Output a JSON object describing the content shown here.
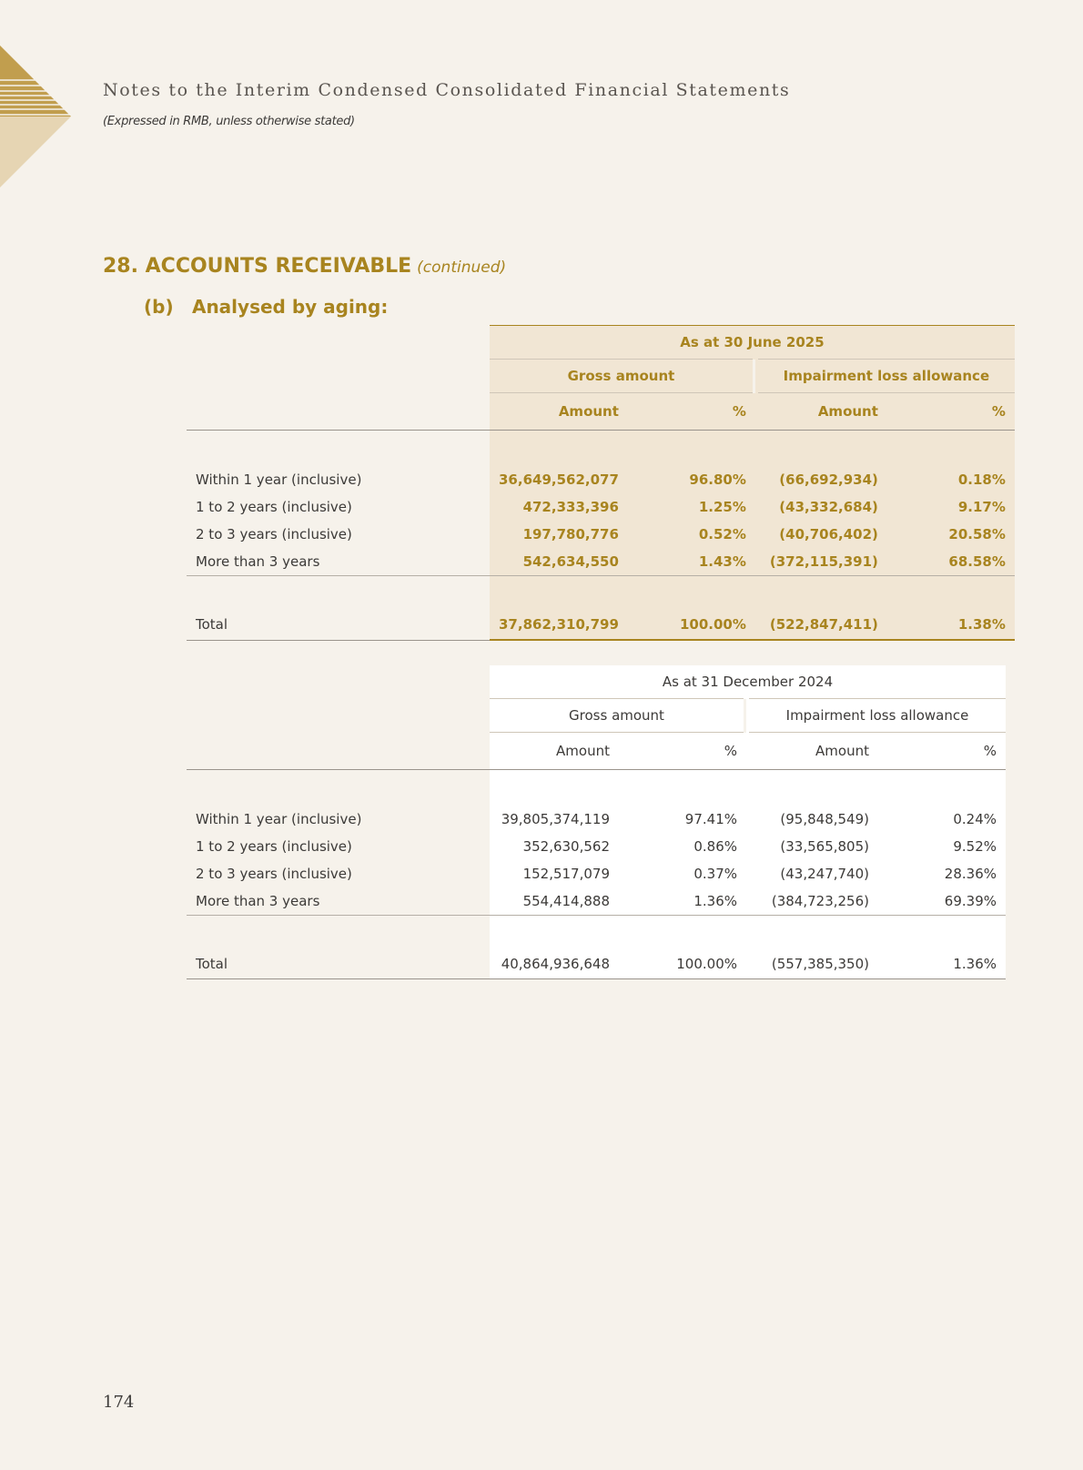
{
  "header": {
    "running_title": "Notes to the Interim Condensed Consolidated Financial Statements",
    "subtitle": "(Expressed in RMB, unless otherwise stated)"
  },
  "section": {
    "number": "28.",
    "title": "ACCOUNTS RECEIVABLE",
    "continued": "(continued)",
    "sub_label": "(b)",
    "sub_title": "Analysed by aging:"
  },
  "colors": {
    "accent": "#a8841f",
    "shade": "#f1e6d4",
    "background": "#f6f2eb"
  },
  "tables": [
    {
      "period": "As at 30 June 2025",
      "group1": "Gross amount",
      "group2": "Impairment loss allowance",
      "cols": [
        "Amount",
        "%",
        "Amount",
        "%"
      ],
      "rows": [
        {
          "label": "Within 1 year (inclusive)",
          "values": [
            "36,649,562,077",
            "96.80%",
            "(66,692,934)",
            "0.18%"
          ]
        },
        {
          "label": "1 to 2 years (inclusive)",
          "values": [
            "472,333,396",
            "1.25%",
            "(43,332,684)",
            "9.17%"
          ]
        },
        {
          "label": "2 to 3 years (inclusive)",
          "values": [
            "197,780,776",
            "0.52%",
            "(40,706,402)",
            "20.58%"
          ]
        },
        {
          "label": "More than 3 years",
          "values": [
            "542,634,550",
            "1.43%",
            "(372,115,391)",
            "68.58%"
          ]
        }
      ],
      "total": {
        "label": "Total",
        "values": [
          "37,862,310,799",
          "100.00%",
          "(522,847,411)",
          "1.38%"
        ]
      }
    },
    {
      "period": "As at 31 December 2024",
      "group1": "Gross amount",
      "group2": "Impairment loss allowance",
      "cols": [
        "Amount",
        "%",
        "Amount",
        "%"
      ],
      "rows": [
        {
          "label": "Within 1 year (inclusive)",
          "values": [
            "39,805,374,119",
            "97.41%",
            "(95,848,549)",
            "0.24%"
          ]
        },
        {
          "label": "1 to 2 years (inclusive)",
          "values": [
            "352,630,562",
            "0.86%",
            "(33,565,805)",
            "9.52%"
          ]
        },
        {
          "label": "2 to 3 years (inclusive)",
          "values": [
            "152,517,079",
            "0.37%",
            "(43,247,740)",
            "28.36%"
          ]
        },
        {
          "label": "More than 3 years",
          "values": [
            "554,414,888",
            "1.36%",
            "(384,723,256)",
            "69.39%"
          ]
        }
      ],
      "total": {
        "label": "Total",
        "values": [
          "40,864,936,648",
          "100.00%",
          "(557,385,350)",
          "1.36%"
        ]
      }
    }
  ],
  "footer": {
    "page_number": "174"
  }
}
